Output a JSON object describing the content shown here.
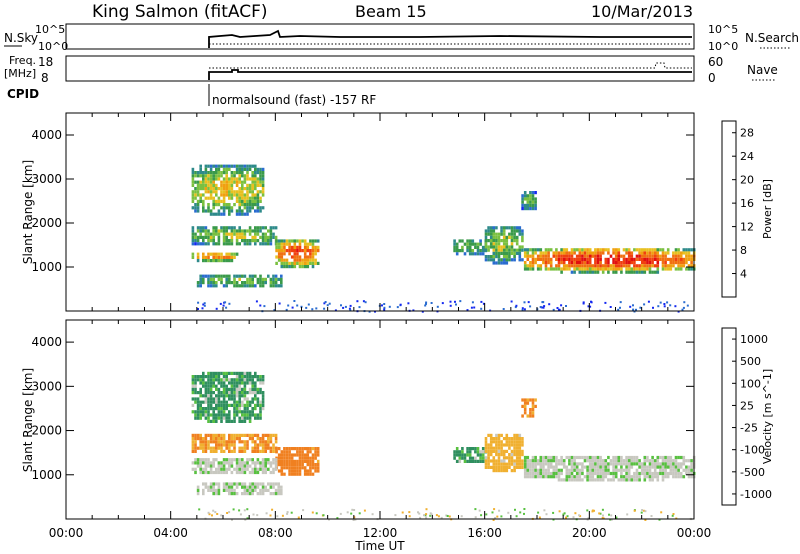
{
  "header": {
    "station": "King Salmon (fitACF)",
    "beam": "Beam 15",
    "date": "10/Mar/2013"
  },
  "top_panels": {
    "nsky_label": "N.Sky",
    "nsky_ticks": [
      "10^5",
      "10^0"
    ],
    "nsearch_label": "N.Search",
    "nsearch_ticks": [
      "10^5",
      "10^0"
    ],
    "freq_label_1": "Freq.",
    "freq_label_2": "[MHz]",
    "freq_ticks": [
      "18",
      "8"
    ],
    "nave_label": "Nave",
    "nave_ticks": [
      "60",
      "0"
    ],
    "cpid_label": "CPID",
    "cpid_text": "normalsound (fast) -157 RF"
  },
  "chart_data": [
    {
      "type": "heatmap",
      "title": "Power",
      "xlabel": "Time UT",
      "ylabel": "Slant Range [km]",
      "x_ticks": [
        "00:00",
        "04:00",
        "08:00",
        "12:00",
        "16:00",
        "20:00",
        "00:00"
      ],
      "xlim_hours": [
        0,
        24
      ],
      "ylim_km": [
        0,
        4500
      ],
      "y_ticks": [
        1000,
        2000,
        3000,
        4000
      ],
      "colorbar": {
        "label": "Power [dB]",
        "ticks": [
          "4",
          "8",
          "12",
          "16",
          "20",
          "24",
          "28"
        ],
        "range": [
          0,
          30
        ],
        "colors": [
          "#1428f0",
          "#2a6cd0",
          "#2e8a8a",
          "#3a9a4a",
          "#7ac040",
          "#e8c020",
          "#f0a010",
          "#f07010",
          "#f04010",
          "#e01010"
        ]
      },
      "echo_regions": [
        {
          "t": [
            4.8,
            7.5
          ],
          "r": [
            2200,
            3400
          ],
          "power": 14
        },
        {
          "t": [
            4.8,
            8.0
          ],
          "r": [
            1500,
            2000
          ],
          "power": 12
        },
        {
          "t": [
            8.0,
            9.6
          ],
          "r": [
            1000,
            1700
          ],
          "power": 20
        },
        {
          "t": [
            4.8,
            6.5
          ],
          "r": [
            1150,
            1400
          ],
          "power": 18
        },
        {
          "t": [
            5.0,
            8.2
          ],
          "r": [
            550,
            900
          ],
          "power": 10
        },
        {
          "t": [
            14.8,
            16.0
          ],
          "r": [
            1300,
            1700
          ],
          "power": 10
        },
        {
          "t": [
            16.0,
            17.4
          ],
          "r": [
            1100,
            2000
          ],
          "power": 12
        },
        {
          "t": [
            17.4,
            17.9
          ],
          "r": [
            2300,
            2800
          ],
          "power": 10
        },
        {
          "t": [
            17.5,
            24.0
          ],
          "r": [
            900,
            1500
          ],
          "power": 22
        }
      ]
    },
    {
      "type": "heatmap",
      "title": "Velocity",
      "xlabel": "Time UT",
      "ylabel": "Slant Range [km]",
      "x_ticks": [
        "00:00",
        "04:00",
        "08:00",
        "12:00",
        "16:00",
        "20:00",
        "00:00"
      ],
      "xlim_hours": [
        0,
        24
      ],
      "ylim_km": [
        0,
        4500
      ],
      "y_ticks": [
        1000,
        2000,
        3000,
        4000
      ],
      "colorbar": {
        "label": "Velocity [m s^-1]",
        "ticks": [
          "1000",
          "500",
          "100",
          "25",
          "-25",
          "-100",
          "-500",
          "-1000"
        ],
        "colors": [
          "#2838c0",
          "#2f6fb0",
          "#2f8f5f",
          "#58c040",
          "#c8c8c0",
          "#f0b030",
          "#f08020",
          "#e02010"
        ]
      },
      "echo_regions": [
        {
          "t": [
            4.8,
            7.5
          ],
          "r": [
            2200,
            3400
          ],
          "velocity": 100
        },
        {
          "t": [
            4.8,
            8.0
          ],
          "r": [
            1500,
            2000
          ],
          "velocity": -300
        },
        {
          "t": [
            8.0,
            9.6
          ],
          "r": [
            1000,
            1700
          ],
          "velocity": -500
        },
        {
          "t": [
            4.8,
            8.0
          ],
          "r": [
            1050,
            1450
          ],
          "velocity": 0
        },
        {
          "t": [
            5.0,
            8.2
          ],
          "r": [
            550,
            900
          ],
          "velocity": 0
        },
        {
          "t": [
            14.8,
            16.0
          ],
          "r": [
            1300,
            1700
          ],
          "velocity": 100
        },
        {
          "t": [
            16.0,
            17.4
          ],
          "r": [
            1100,
            2000
          ],
          "velocity": -150
        },
        {
          "t": [
            17.4,
            17.9
          ],
          "r": [
            2300,
            2800
          ],
          "velocity": -300
        },
        {
          "t": [
            17.5,
            24.0
          ],
          "r": [
            900,
            1500
          ],
          "velocity": 0
        }
      ]
    }
  ]
}
